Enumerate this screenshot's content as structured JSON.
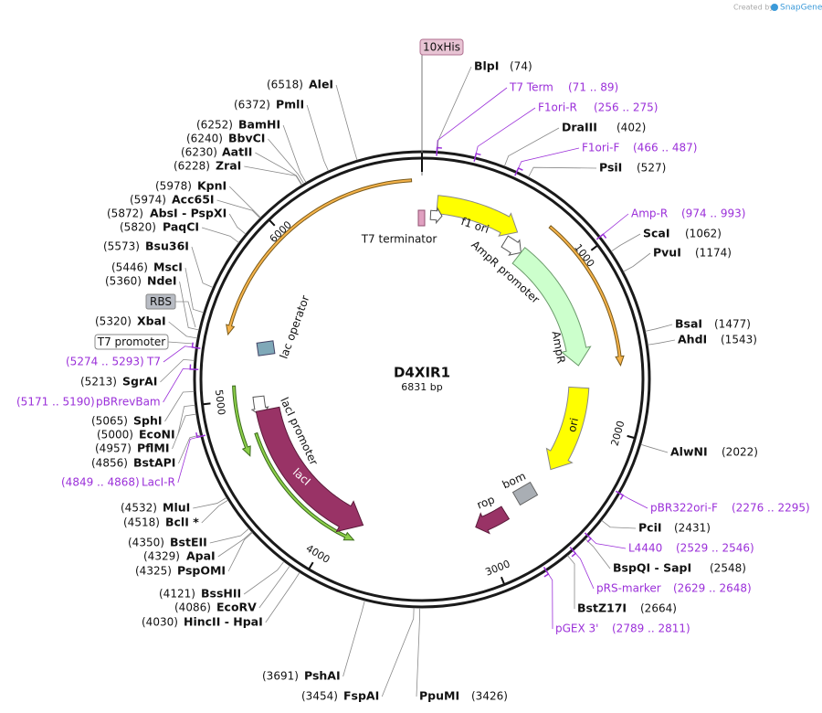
{
  "header": {
    "created_by": "Created by",
    "brand": "SnapGene"
  },
  "plasmid": {
    "name": "D4XIR1",
    "length": "6831 bp"
  },
  "ticks": [
    1000,
    2000,
    3000,
    4000,
    5000,
    6000
  ],
  "features": [
    "10xHis",
    "T7 terminator",
    "f1 ori",
    "AmpR promoter",
    "AmpR",
    "ori",
    "bom",
    "rop",
    "lacI",
    "lacI promoter",
    "lac operator",
    "RBS",
    "T7 promoter"
  ],
  "sites": [
    {
      "name": "BlpI",
      "position": "(74)"
    },
    {
      "name": "DraIII",
      "position": "(402)"
    },
    {
      "name": "PsiI",
      "position": "(527)"
    },
    {
      "name": "ScaI",
      "position": "(1062)"
    },
    {
      "name": "PvuI",
      "position": "(1174)"
    },
    {
      "name": "BsaI",
      "position": "(1477)"
    },
    {
      "name": "AhdI",
      "position": "(1543)"
    },
    {
      "name": "AlwNI",
      "position": "(2022)"
    },
    {
      "name": "PciI",
      "position": "(2431)"
    },
    {
      "name": "BspQI - SapI",
      "position": "(2548)"
    },
    {
      "name": "BstZ17I",
      "position": "(2664)"
    },
    {
      "name": "PpuMI",
      "position": "(3426)"
    },
    {
      "name": "FspAI",
      "position": "(3454)"
    },
    {
      "name": "PshAI",
      "position": "(3691)"
    },
    {
      "name": "HincII - HpaI",
      "position": "(4030)"
    },
    {
      "name": "EcoRV",
      "position": "(4086)"
    },
    {
      "name": "BssHII",
      "position": "(4121)"
    },
    {
      "name": "PspOMI",
      "position": "(4325)"
    },
    {
      "name": "ApaI",
      "position": "(4329)"
    },
    {
      "name": "BstEII",
      "position": "(4350)"
    },
    {
      "name": "BclI *",
      "position": "(4518)"
    },
    {
      "name": "MluI",
      "position": "(4532)"
    },
    {
      "name": "BstAPI",
      "position": "(4856)"
    },
    {
      "name": "PflMI",
      "position": "(4957)"
    },
    {
      "name": "EcoNI",
      "position": "(5000)"
    },
    {
      "name": "SphI",
      "position": "(5065)"
    },
    {
      "name": "SgrAI",
      "position": "(5213)"
    },
    {
      "name": "XbaI",
      "position": "(5320)"
    },
    {
      "name": "NdeI",
      "position": "(5360)"
    },
    {
      "name": "MscI",
      "position": "(5446)"
    },
    {
      "name": "Bsu36I",
      "position": "(5573)"
    },
    {
      "name": "PaqCI",
      "position": "(5820)"
    },
    {
      "name": "AbsI - PspXI",
      "position": "(5872)"
    },
    {
      "name": "Acc65I",
      "position": "(5974)"
    },
    {
      "name": "KpnI",
      "position": "(5978)"
    },
    {
      "name": "ZraI",
      "position": "(6228)"
    },
    {
      "name": "AatII",
      "position": "(6230)"
    },
    {
      "name": "BbvCI",
      "position": "(6240)"
    },
    {
      "name": "BamHI",
      "position": "(6252)"
    },
    {
      "name": "PmlI",
      "position": "(6372)"
    },
    {
      "name": "AleI",
      "position": "(6518)"
    }
  ],
  "primers": [
    {
      "name": "T7 Term",
      "range": "(71 .. 89)"
    },
    {
      "name": "F1ori-R",
      "range": "(256 .. 275)"
    },
    {
      "name": "F1ori-F",
      "range": "(466 .. 487)"
    },
    {
      "name": "Amp-R",
      "range": "(974 .. 993)"
    },
    {
      "name": "pBR322ori-F",
      "range": "(2276 .. 2295)"
    },
    {
      "name": "L4440",
      "range": "(2529 .. 2546)"
    },
    {
      "name": "pRS-marker",
      "range": "(2629 .. 2648)"
    },
    {
      "name": "pGEX 3'",
      "range": "(2789 .. 2811)"
    },
    {
      "name": "LacI-R",
      "range": "(4849 .. 4868)"
    },
    {
      "name": "pBRrevBam",
      "range": "(5171 .. 5190)"
    },
    {
      "name": "T7",
      "range": "(5274 .. 5293)"
    }
  ]
}
